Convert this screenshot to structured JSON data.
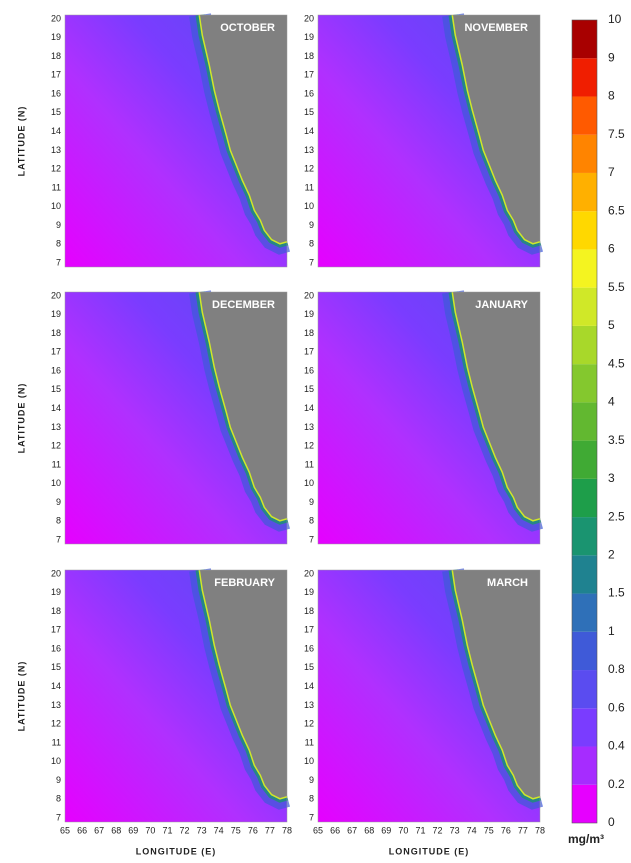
{
  "panels": [
    {
      "title": "OCTOBER"
    },
    {
      "title": "NOVEMBER"
    },
    {
      "title": "DECEMBER"
    },
    {
      "title": "JANUARY"
    },
    {
      "title": "FEBRUARY"
    },
    {
      "title": "MARCH"
    }
  ],
  "latitude_ticks": [
    7,
    8,
    9,
    10,
    11,
    12,
    13,
    14,
    15,
    16,
    17,
    18,
    19,
    20
  ],
  "longitude_ticks": [
    65,
    66,
    67,
    68,
    69,
    70,
    71,
    72,
    73,
    74,
    75,
    76,
    77,
    78
  ],
  "y_axis_label": "LATITUDE (N)",
  "x_axis_label": "LONGITUDE (E)",
  "colorbar": {
    "ticks": [
      0,
      0.2,
      0.4,
      0.6,
      0.8,
      1,
      1.5,
      2,
      2.5,
      3,
      3.5,
      4,
      4.5,
      5,
      5.5,
      6,
      6.5,
      7,
      7.5,
      8,
      9,
      10
    ],
    "colors": [
      "#e600ff",
      "#a62cff",
      "#7a3cff",
      "#5a4cf0",
      "#3f5ad8",
      "#2f70b8",
      "#1f8290",
      "#1a9470",
      "#1e9e4a",
      "#40aa34",
      "#62b830",
      "#84c82e",
      "#a8d82a",
      "#d0e828",
      "#f4f420",
      "#ffd800",
      "#ffb000",
      "#ff8400",
      "#ff5a00",
      "#f01e00",
      "#a80000"
    ],
    "unit": "mg/m³"
  }
}
